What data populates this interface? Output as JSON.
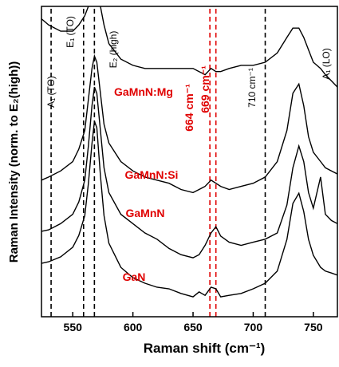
{
  "chart_data": {
    "type": "line",
    "x_label": "Raman shift (cm⁻¹)",
    "y_label": "Raman Intensity (norm. to E₂(high))",
    "xlim": [
      524,
      770
    ],
    "xticks": [
      550,
      600,
      650,
      700,
      750
    ],
    "ylim": [
      0,
      100
    ],
    "label_color": "#e00000",
    "x": [
      524,
      530,
      540,
      550,
      555,
      560,
      563,
      566,
      568,
      570,
      573,
      576,
      580,
      590,
      600,
      610,
      620,
      630,
      640,
      650,
      655,
      660,
      665,
      669,
      673,
      680,
      690,
      700,
      710,
      720,
      728,
      733,
      738,
      742,
      746,
      750,
      756,
      760,
      765,
      770
    ],
    "series": [
      {
        "name": "GaN",
        "color": "#000000",
        "values": [
          17.2,
          17.7,
          19.3,
          22.4,
          26.2,
          32.6,
          42.9,
          55.8,
          63.0,
          60.9,
          45.5,
          32.6,
          23.7,
          15.9,
          12.6,
          10.8,
          9.5,
          9.0,
          7.5,
          6.4,
          8.0,
          6.9,
          9.5,
          9.0,
          6.4,
          6.9,
          7.5,
          9.0,
          10.8,
          14.7,
          24.9,
          36.5,
          39.8,
          33.9,
          24.9,
          19.8,
          15.9,
          14.7,
          14.1,
          13.4
        ]
      },
      {
        "name": "GaMnN",
        "color": "#000000",
        "values": [
          27.5,
          28,
          30,
          33,
          37,
          44,
          55,
          68,
          74,
          72,
          60,
          48,
          40,
          33,
          30,
          27,
          25,
          22,
          20,
          19,
          20,
          23,
          27,
          29,
          26,
          24,
          23,
          24,
          25,
          27,
          36,
          48,
          55,
          50,
          40,
          35,
          45,
          33,
          31,
          30
        ]
      },
      {
        "name": "GaMnN:Si",
        "color": "#000000",
        "values": [
          44,
          45,
          47,
          50,
          54,
          60,
          70,
          80,
          84,
          82,
          72,
          62,
          56,
          50,
          47,
          45,
          44,
          43,
          41,
          40,
          41,
          42,
          44,
          43,
          42,
          41,
          42,
          43,
          45,
          50,
          60,
          72,
          75,
          68,
          58,
          53,
          50,
          48,
          47,
          46
        ]
      },
      {
        "name": "GaMnN:Mg",
        "color": "#000000",
        "values": [
          96,
          94,
          92,
          92,
          94,
          97,
          100,
          104,
          105,
          104,
          100,
          94,
          88,
          83,
          81,
          80,
          80,
          80,
          80,
          80,
          79,
          78,
          80,
          79,
          79,
          80,
          81,
          81,
          82,
          85,
          90,
          93,
          93,
          90,
          86,
          82,
          80,
          78,
          76,
          74
        ]
      }
    ],
    "vlines": [
      {
        "x": 532,
        "label": "A₁ (TO)",
        "color": "#000000"
      },
      {
        "x": 559,
        "label": "E₁ (TO)",
        "color": "#000000"
      },
      {
        "x": 568,
        "label": "E₂ (high)",
        "color": "#000000"
      },
      {
        "x": 664,
        "label": "664 cm⁻¹",
        "color": "#e00000"
      },
      {
        "x": 669,
        "label": "669 cm⁻¹",
        "color": "#e00000"
      },
      {
        "x": 710,
        "label": "710 cm⁻¹",
        "color": "#000000"
      }
    ],
    "peak_label": "A₁ (LO)"
  }
}
